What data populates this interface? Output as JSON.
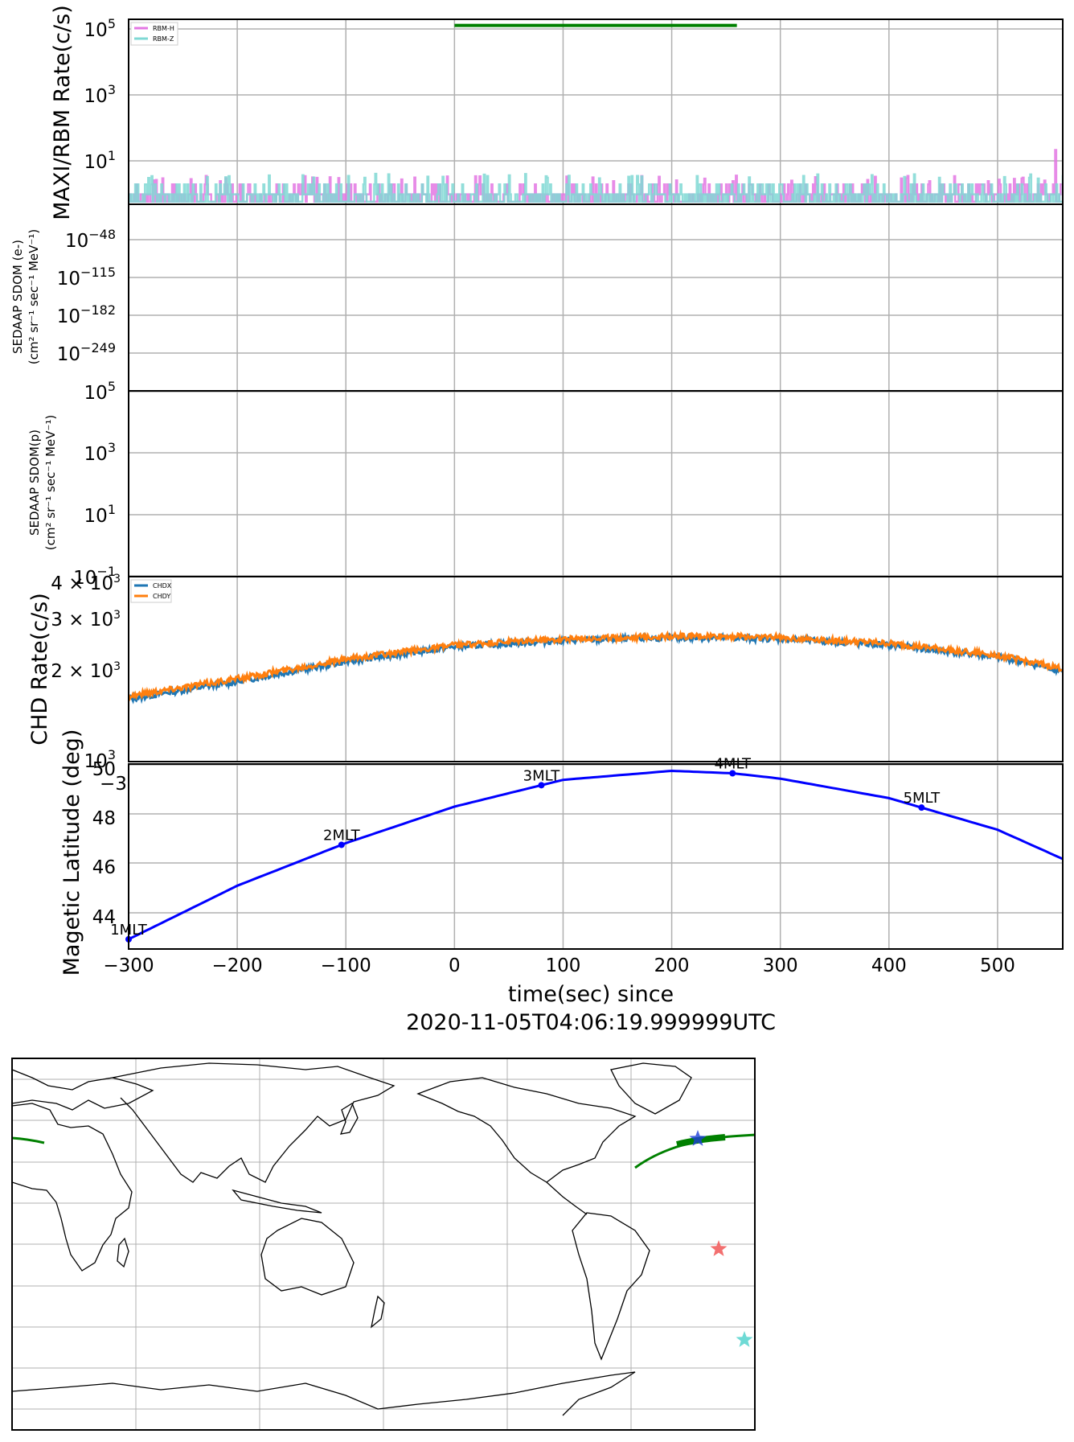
{
  "figure": {
    "xlabel_line1": "time(sec) since",
    "xlabel_line2": "2020-11-05T04:06:19.999999UTC"
  },
  "chart_data": [
    {
      "type": "line",
      "panel": "rbm",
      "ylabel": "MAXI/RBM Rate(c/s)",
      "yscale": "log",
      "ylim": [
        0.5,
        200000
      ],
      "y_ticks": [
        "10^5",
        "10^3",
        "10^1"
      ],
      "xlim": [
        -300,
        560
      ],
      "legend": "top-left",
      "series": [
        {
          "name": "RBM-H",
          "color": "#e377e3",
          "typical_range": [
            0.6,
            2.5
          ],
          "spike": {
            "x": 553,
            "y": 22
          }
        },
        {
          "name": "RBM-Z",
          "color": "#7fd8d4",
          "typical_range": [
            0.6,
            3
          ]
        }
      ],
      "marker_bar": {
        "x_start": 0,
        "x_end": 260,
        "y": 130000,
        "color": "#008000"
      }
    },
    {
      "type": "line",
      "panel": "sdom-e",
      "ylabel": [
        "SEDAAP SDOM (e-)",
        "(cm² sr⁻¹ sec⁻¹ MeV⁻¹)"
      ],
      "yscale": "log",
      "y_ticks": [
        "10^-48",
        "10^-115",
        "10^-182",
        "10^-249"
      ],
      "series": []
    },
    {
      "type": "line",
      "panel": "sdom-p",
      "ylabel": [
        "SEDAAP SDOM(p)",
        "(cm² sr⁻¹ sec⁻¹ MeV⁻¹)"
      ],
      "yscale": "log",
      "y_ticks": [
        "10^5",
        "10^3",
        "10^1",
        "10^-1"
      ],
      "series": []
    },
    {
      "type": "line",
      "panel": "chd",
      "ylabel": "CHD Rate(c/s)",
      "yscale": "log",
      "ylim": [
        1000,
        4000
      ],
      "y_ticks": [
        "4×10^3",
        "3×10^3",
        "2×10^3",
        "10^3"
      ],
      "xlim": [
        -300,
        560
      ],
      "legend": "top-left",
      "series": [
        {
          "name": "CHDX",
          "color": "#1f77b4",
          "x": [
            -300,
            -200,
            -100,
            0,
            100,
            200,
            250,
            300,
            400,
            500,
            560
          ],
          "values": [
            1610,
            1840,
            2140,
            2400,
            2520,
            2570,
            2570,
            2550,
            2430,
            2220,
            2000
          ]
        },
        {
          "name": "CHDY",
          "color": "#ff7f0e",
          "x": [
            -300,
            -200,
            -100,
            0,
            100,
            200,
            250,
            300,
            400,
            500,
            560
          ],
          "values": [
            1650,
            1880,
            2180,
            2430,
            2550,
            2600,
            2600,
            2580,
            2460,
            2250,
            2030
          ]
        }
      ]
    },
    {
      "type": "line",
      "panel": "latitude",
      "ylabel": "Magetic Latitude  (deg)",
      "ylim": [
        42.7,
        50.3
      ],
      "y_ticks": [
        "44",
        "46",
        "48",
        "50"
      ],
      "xlim": [
        -300,
        560
      ],
      "x_ticks": [
        "−300",
        "−200",
        "−100",
        "0",
        "100",
        "200",
        "300",
        "400",
        "500"
      ],
      "series": [
        {
          "color": "#0000ff",
          "x": [
            -300,
            -200,
            -100,
            0,
            100,
            200,
            256,
            300,
            400,
            500,
            560
          ],
          "values": [
            43.1,
            45.3,
            47.05,
            48.55,
            49.65,
            50.02,
            49.92,
            49.7,
            48.9,
            47.6,
            46.4
          ]
        }
      ],
      "annotations": [
        {
          "text": "1MLT",
          "x": -300,
          "y": 43.1
        },
        {
          "text": "2MLT",
          "x": -104,
          "y": 47.05
        },
        {
          "text": "3MLT",
          "x": 80,
          "y": 49.5
        },
        {
          "text": "4MLT",
          "x": 256,
          "y": 49.92
        },
        {
          "text": "5MLT",
          "x": 430,
          "y": 48.55
        }
      ],
      "stray_tick_label": "−3"
    },
    {
      "type": "scatter",
      "panel": "world-map",
      "markers": [
        {
          "name": "blue-star",
          "color": "#1d3fd8"
        },
        {
          "name": "red-star",
          "color": "#f26060"
        },
        {
          "name": "cyan-star",
          "color": "#5ed6d0"
        }
      ],
      "track_color": "#008000"
    }
  ]
}
